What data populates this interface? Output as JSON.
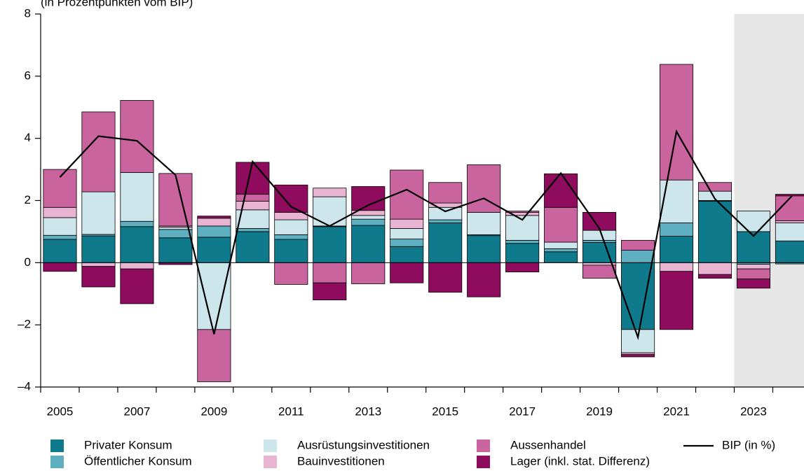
{
  "chart_data": {
    "type": "bar",
    "stacked": true,
    "subtitle": "(in Prozentpunkten vom BIP)",
    "x": [
      2005,
      2006,
      2007,
      2008,
      2009,
      2010,
      2011,
      2012,
      2013,
      2014,
      2015,
      2016,
      2017,
      2018,
      2019,
      2020,
      2021,
      2022,
      2023,
      2024
    ],
    "xlim": [
      2004.5,
      2024.31
    ],
    "xticks": [
      2005,
      2007,
      2009,
      2011,
      2013,
      2015,
      2017,
      2019,
      2021,
      2023
    ],
    "ylim": [
      -4,
      8
    ],
    "yticks": [
      {
        "value": -4,
        "label": "–4"
      },
      {
        "value": -2,
        "label": "–2"
      },
      0,
      2,
      4,
      6,
      8
    ],
    "forecast_start": 2022.5,
    "series": [
      {
        "name": "Privater Konsum",
        "color": "#0f7a8c",
        "values": [
          0.75,
          0.86,
          1.16,
          0.8,
          0.82,
          1.0,
          0.75,
          1.16,
          1.2,
          0.52,
          1.28,
          0.87,
          0.62,
          0.35,
          0.65,
          -2.15,
          0.85,
          1.98,
          1.0,
          0.7
        ]
      },
      {
        "name": "Öffentlicher Konsum",
        "color": "#5eafbf",
        "values": [
          0.13,
          0.05,
          0.17,
          0.27,
          0.36,
          0.1,
          0.15,
          0.02,
          0.2,
          0.24,
          0.1,
          0.03,
          0.1,
          0.1,
          0.07,
          0.4,
          0.43,
          0.02,
          -0.05,
          -0.04
        ]
      },
      {
        "name": "Ausrüstungsinvestitionen",
        "color": "#cde6ec",
        "values": [
          0.57,
          1.37,
          1.57,
          0.07,
          -2.15,
          0.6,
          0.48,
          0.94,
          0.12,
          0.34,
          0.4,
          0.72,
          0.8,
          0.21,
          0.32,
          -0.75,
          1.38,
          0.3,
          0.66,
          0.58
        ]
      },
      {
        "name": "Bauinvestitionen",
        "color": "#e8b4d2",
        "values": [
          0.33,
          -0.12,
          -0.2,
          0.04,
          0.25,
          0.28,
          0.24,
          0.28,
          0.16,
          0.3,
          0.14,
          0.0,
          0.1,
          0.0,
          -0.08,
          -0.05,
          -0.28,
          -0.38,
          -0.15,
          0.07
        ]
      },
      {
        "name": "Aussenhandel",
        "color": "#c9649f",
        "values": [
          1.22,
          2.57,
          2.32,
          1.69,
          -1.68,
          0.22,
          -0.7,
          -0.65,
          -0.68,
          1.58,
          0.66,
          1.53,
          0.04,
          1.12,
          -0.42,
          0.32,
          3.72,
          0.28,
          -0.32,
          0.8
        ]
      },
      {
        "name": "Lager (inkl. stat. Differenz)",
        "color": "#8e0b5e",
        "values": [
          -0.28,
          -0.66,
          -1.12,
          -0.06,
          0.07,
          1.03,
          0.88,
          -0.55,
          0.77,
          -0.65,
          -0.95,
          -1.1,
          -0.3,
          1.08,
          0.58,
          -0.08,
          -1.87,
          -0.12,
          -0.3,
          0.05
        ]
      },
      {
        "name": "BIP (in %)",
        "type": "line",
        "color": "#000000",
        "values": [
          2.75,
          4.07,
          3.92,
          2.82,
          -2.3,
          3.25,
          1.8,
          1.18,
          1.85,
          2.35,
          1.65,
          2.07,
          1.38,
          2.88,
          1.1,
          -2.4,
          4.22,
          2.05,
          0.86,
          2.15
        ]
      }
    ]
  }
}
